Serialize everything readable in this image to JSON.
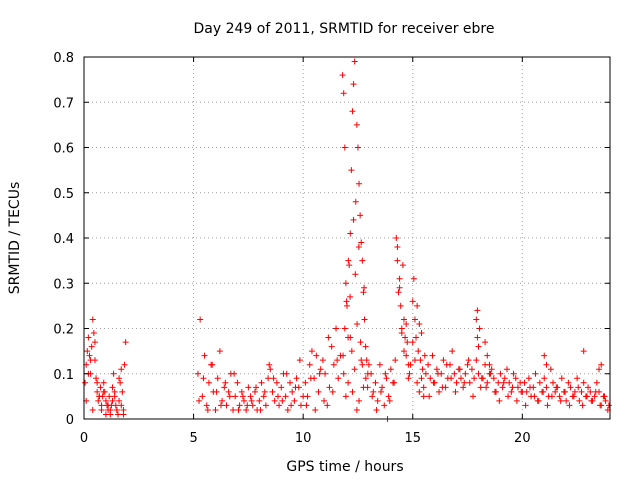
{
  "chart_data": {
    "type": "scatter",
    "title": "Day 249 of 2011, SRMTID for receiver ebre",
    "xlabel": "GPS time / hours",
    "ylabel": "SRMTID / TECUs",
    "xlim": [
      0,
      24
    ],
    "ylim": [
      0,
      0.8
    ],
    "xticks": [
      0,
      5,
      10,
      15,
      20
    ],
    "xtick_labels": [
      "0",
      "5",
      "10",
      "15",
      "20"
    ],
    "yticks": [
      0,
      0.1,
      0.2,
      0.3,
      0.4,
      0.5,
      0.6,
      0.7,
      0.8
    ],
    "ytick_labels": [
      "0",
      "0.1",
      "0.2",
      "0.3",
      "0.4",
      "0.5",
      "0.6",
      "0.7",
      "0.8"
    ],
    "grid": true,
    "marker": "+",
    "series_color": "#ff0000",
    "series": [
      {
        "name": "SRMTID",
        "x": [
          0.05,
          0.1,
          0.15,
          0.2,
          0.25,
          0.3,
          0.35,
          0.4,
          0.45,
          0.5,
          0.55,
          0.6,
          0.65,
          0.7,
          0.75,
          0.8,
          0.85,
          0.9,
          0.95,
          1.0,
          1.05,
          1.1,
          1.15,
          1.2,
          1.25,
          1.3,
          1.35,
          1.4,
          1.45,
          1.5,
          1.55,
          1.6,
          1.65,
          1.7,
          1.75,
          1.8,
          1.85,
          1.9,
          0.1,
          0.2,
          0.3,
          0.4,
          0.5,
          0.6,
          0.7,
          0.8,
          0.9,
          1.0,
          1.1,
          1.2,
          1.3,
          1.4,
          1.5,
          1.6,
          1.7,
          1.8,
          5.2,
          5.3,
          5.4,
          5.5,
          5.6,
          5.7,
          5.8,
          5.9,
          6.0,
          6.1,
          6.2,
          6.3,
          6.4,
          6.5,
          6.6,
          6.7,
          6.8,
          6.9,
          7.0,
          7.1,
          7.2,
          7.3,
          7.4,
          7.5,
          7.6,
          7.7,
          7.8,
          7.9,
          8.0,
          8.1,
          8.2,
          8.3,
          8.4,
          8.5,
          8.6,
          8.7,
          8.8,
          8.9,
          9.0,
          9.1,
          9.2,
          9.3,
          9.4,
          9.5,
          9.6,
          9.7,
          9.8,
          9.9,
          10.0,
          5.25,
          5.45,
          5.65,
          5.85,
          6.05,
          6.25,
          6.45,
          6.65,
          6.85,
          7.05,
          7.25,
          7.45,
          7.65,
          7.85,
          8.05,
          8.25,
          8.45,
          8.65,
          8.85,
          9.05,
          9.25,
          9.45,
          9.65,
          9.85,
          10.1,
          10.2,
          10.3,
          10.4,
          10.5,
          10.6,
          10.7,
          10.8,
          10.9,
          11.0,
          11.1,
          11.2,
          11.3,
          11.4,
          11.5,
          11.6,
          11.7,
          10.15,
          10.35,
          10.55,
          10.75,
          10.95,
          11.15,
          11.35,
          11.55,
          11.8,
          11.85,
          11.9,
          11.95,
          12.0,
          12.05,
          12.1,
          12.15,
          12.2,
          12.25,
          12.3,
          12.35,
          12.4,
          12.45,
          12.5,
          12.55,
          12.6,
          12.65,
          12.7,
          12.75,
          12.8,
          12.85,
          12.9,
          12.95,
          13.0,
          11.82,
          11.9,
          11.98,
          12.06,
          12.14,
          12.22,
          12.3,
          12.38,
          12.46,
          12.54,
          12.62,
          12.7,
          12.78,
          12.86,
          12.94,
          11.85,
          11.95,
          12.05,
          12.15,
          12.25,
          12.35,
          12.45,
          12.55,
          12.65,
          12.75,
          13.1,
          13.2,
          13.3,
          13.4,
          13.5,
          13.6,
          13.7,
          13.8,
          13.9,
          14.0,
          14.1,
          14.2,
          13.15,
          13.35,
          13.55,
          13.75,
          13.95,
          14.15,
          14.25,
          14.3,
          14.35,
          14.4,
          14.45,
          14.5,
          14.55,
          14.6,
          14.65,
          14.7,
          14.75,
          14.8,
          14.85,
          14.3,
          14.4,
          14.5,
          14.6,
          14.7,
          14.8,
          14.9,
          15.0,
          15.05,
          15.1,
          15.15,
          15.2,
          15.25,
          15.3,
          15.35,
          15.4,
          15.45,
          15.5,
          15.55,
          15.6,
          15.0,
          15.1,
          15.2,
          15.3,
          15.4,
          15.5,
          15.7,
          15.8,
          15.9,
          16.0,
          16.1,
          16.2,
          16.3,
          16.4,
          16.5,
          16.6,
          16.7,
          16.8,
          16.9,
          17.0,
          17.1,
          17.2,
          17.3,
          17.4,
          17.5,
          17.6,
          17.7,
          17.8,
          17.9,
          18.0,
          18.1,
          18.2,
          18.3,
          18.4,
          18.5,
          18.6,
          18.7,
          18.8,
          18.9,
          19.0,
          19.1,
          19.2,
          19.3,
          19.4,
          19.5,
          19.6,
          19.7,
          19.8,
          19.9,
          20.0,
          15.75,
          15.95,
          16.15,
          16.35,
          16.55,
          16.75,
          16.95,
          17.15,
          17.35,
          17.55,
          17.75,
          17.95,
          18.15,
          18.35,
          18.55,
          18.75,
          18.95,
          19.15,
          19.35,
          19.55,
          19.75,
          19.95,
          17.9,
          17.95,
          18.0,
          18.05,
          18.3,
          18.4,
          18.5,
          20.1,
          20.2,
          20.3,
          20.4,
          20.5,
          20.6,
          20.7,
          20.8,
          20.9,
          21.0,
          21.1,
          21.2,
          21.3,
          21.4,
          21.5,
          21.6,
          21.7,
          21.8,
          21.9,
          22.0,
          22.1,
          22.2,
          22.3,
          22.4,
          22.5,
          22.6,
          22.7,
          22.8,
          22.9,
          23.0,
          23.1,
          23.2,
          23.3,
          23.4,
          23.5,
          23.6,
          23.7,
          23.8,
          23.9,
          20.15,
          20.35,
          20.55,
          20.75,
          20.95,
          21.15,
          21.35,
          21.55,
          21.75,
          21.95,
          22.15,
          22.35,
          22.55,
          22.75,
          22.95,
          23.15,
          23.35,
          23.55,
          23.75,
          23.95,
          21.0,
          21.1,
          22.8,
          23.5,
          23.6,
          13.85
        ],
        "y": [
          0.08,
          0.12,
          0.15,
          0.18,
          0.14,
          0.1,
          0.16,
          0.22,
          0.19,
          0.13,
          0.09,
          0.06,
          0.04,
          0.05,
          0.07,
          0.03,
          0.05,
          0.08,
          0.06,
          0.04,
          0.03,
          0.02,
          0.05,
          0.02,
          0.03,
          0.07,
          0.1,
          0.06,
          0.03,
          0.02,
          0.01,
          0.04,
          0.08,
          0.11,
          0.06,
          0.02,
          0.12,
          0.17,
          0.04,
          0.1,
          0.13,
          0.02,
          0.17,
          0.08,
          0.05,
          0.02,
          0.06,
          0.01,
          0.03,
          0.01,
          0.04,
          0.05,
          0.02,
          0.09,
          0.03,
          0.01,
          0.1,
          0.22,
          0.05,
          0.14,
          0.03,
          0.08,
          0.12,
          0.06,
          0.02,
          0.09,
          0.15,
          0.04,
          0.07,
          0.03,
          0.06,
          0.1,
          0.02,
          0.05,
          0.08,
          0.03,
          0.06,
          0.04,
          0.02,
          0.07,
          0.05,
          0.03,
          0.06,
          0.02,
          0.04,
          0.08,
          0.05,
          0.03,
          0.09,
          0.11,
          0.06,
          0.04,
          0.08,
          0.03,
          0.07,
          0.1,
          0.05,
          0.02,
          0.08,
          0.06,
          0.04,
          0.09,
          0.07,
          0.03,
          0.05,
          0.04,
          0.09,
          0.02,
          0.12,
          0.06,
          0.03,
          0.08,
          0.05,
          0.1,
          0.02,
          0.05,
          0.03,
          0.04,
          0.07,
          0.02,
          0.06,
          0.12,
          0.09,
          0.05,
          0.04,
          0.1,
          0.03,
          0.07,
          0.13,
          0.08,
          0.05,
          0.12,
          0.15,
          0.09,
          0.14,
          0.06,
          0.11,
          0.13,
          0.1,
          0.03,
          0.07,
          0.16,
          0.12,
          0.2,
          0.09,
          0.14,
          0.03,
          0.09,
          0.02,
          0.1,
          0.04,
          0.18,
          0.06,
          0.13,
          0.76,
          0.72,
          0.6,
          0.3,
          0.25,
          0.18,
          0.34,
          0.41,
          0.55,
          0.68,
          0.74,
          0.79,
          0.48,
          0.65,
          0.6,
          0.52,
          0.45,
          0.39,
          0.35,
          0.28,
          0.22,
          0.16,
          0.13,
          0.1,
          0.12,
          0.14,
          0.2,
          0.26,
          0.35,
          0.27,
          0.15,
          0.44,
          0.32,
          0.21,
          0.38,
          0.17,
          0.12,
          0.29,
          0.09,
          0.07,
          0.1,
          0.05,
          0.08,
          0.18,
          0.06,
          0.11,
          0.02,
          0.04,
          0.13,
          0.07,
          0.1,
          0.06,
          0.08,
          0.04,
          0.12,
          0.07,
          0.03,
          0.09,
          0.05,
          0.11,
          0.08,
          0.13,
          0.05,
          0.02,
          0.06,
          0.1,
          0.04,
          0.08,
          0.4,
          0.35,
          0.28,
          0.31,
          0.25,
          0.2,
          0.34,
          0.22,
          0.18,
          0.14,
          0.17,
          0.12,
          0.1,
          0.38,
          0.29,
          0.19,
          0.15,
          0.21,
          0.09,
          0.12,
          0.26,
          0.31,
          0.22,
          0.18,
          0.25,
          0.15,
          0.21,
          0.13,
          0.09,
          0.11,
          0.07,
          0.14,
          0.1,
          0.17,
          0.13,
          0.08,
          0.06,
          0.19,
          0.05,
          0.12,
          0.09,
          0.14,
          0.08,
          0.11,
          0.06,
          0.1,
          0.13,
          0.07,
          0.09,
          0.12,
          0.15,
          0.1,
          0.08,
          0.11,
          0.09,
          0.07,
          0.1,
          0.12,
          0.08,
          0.11,
          0.09,
          0.13,
          0.1,
          0.07,
          0.09,
          0.12,
          0.08,
          0.1,
          0.11,
          0.09,
          0.06,
          0.08,
          0.1,
          0.07,
          0.09,
          0.11,
          0.08,
          0.06,
          0.1,
          0.09,
          0.07,
          0.08,
          0.06,
          0.05,
          0.08,
          0.1,
          0.07,
          0.12,
          0.09,
          0.06,
          0.11,
          0.08,
          0.13,
          0.05,
          0.24,
          0.09,
          0.07,
          0.1,
          0.06,
          0.04,
          0.08,
          0.05,
          0.07,
          0.04,
          0.06,
          0.22,
          0.18,
          0.16,
          0.2,
          0.17,
          0.14,
          0.12,
          0.08,
          0.06,
          0.09,
          0.05,
          0.07,
          0.1,
          0.04,
          0.08,
          0.06,
          0.09,
          0.07,
          0.05,
          0.11,
          0.08,
          0.06,
          0.07,
          0.05,
          0.09,
          0.06,
          0.04,
          0.08,
          0.07,
          0.05,
          0.06,
          0.09,
          0.04,
          0.06,
          0.08,
          0.05,
          0.07,
          0.06,
          0.04,
          0.05,
          0.08,
          0.06,
          0.03,
          0.05,
          0.04,
          0.02,
          0.03,
          0.07,
          0.05,
          0.04,
          0.06,
          0.03,
          0.05,
          0.07,
          0.04,
          0.06,
          0.03,
          0.05,
          0.07,
          0.03,
          0.05,
          0.04,
          0.06,
          0.03,
          0.05,
          0.03,
          0.14,
          0.12,
          0.15,
          0.11,
          0.12,
          0.0
        ]
      }
    ]
  }
}
